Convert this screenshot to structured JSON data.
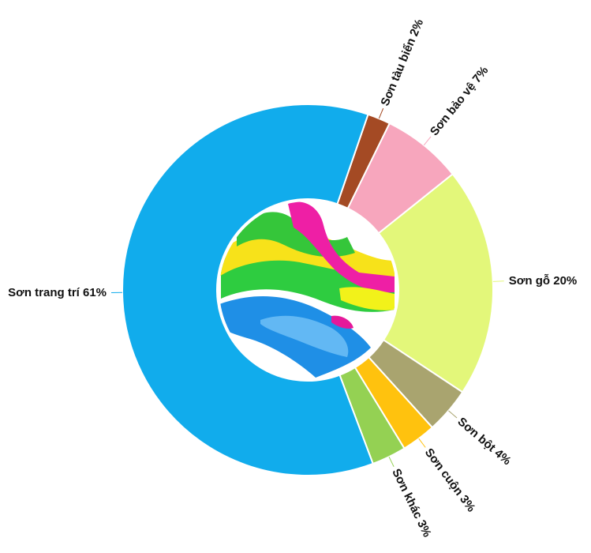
{
  "chart_data": {
    "type": "pie",
    "variant": "donut",
    "title": "",
    "center_image": "paint-splash-illustration",
    "slices": [
      {
        "label": "Sơn tàu biển 2%",
        "value": 2,
        "color": "#a44a24",
        "label_side": "right",
        "label_rotated": true
      },
      {
        "label": "Sơn bảo vệ 7%",
        "value": 7,
        "color": "#f7a6bd",
        "label_side": "right",
        "label_rotated": true
      },
      {
        "label": "Sơn gỗ 20%",
        "value": 20,
        "color": "#e3f77a",
        "label_side": "right",
        "label_rotated": false
      },
      {
        "label": "Sơn bột 4%",
        "value": 4,
        "color": "#a9a46f",
        "label_side": "right",
        "label_rotated": true
      },
      {
        "label": "Sơn cuộn 3%",
        "value": 3,
        "color": "#ffc20e",
        "label_side": "right",
        "label_rotated": true
      },
      {
        "label": "Sơn khác 3%",
        "value": 3,
        "color": "#94d153",
        "label_side": "right",
        "label_rotated": true
      },
      {
        "label": "Sơn trang trí 61%",
        "value": 61,
        "color": "#11acec",
        "label_side": "left",
        "label_rotated": false
      }
    ]
  }
}
